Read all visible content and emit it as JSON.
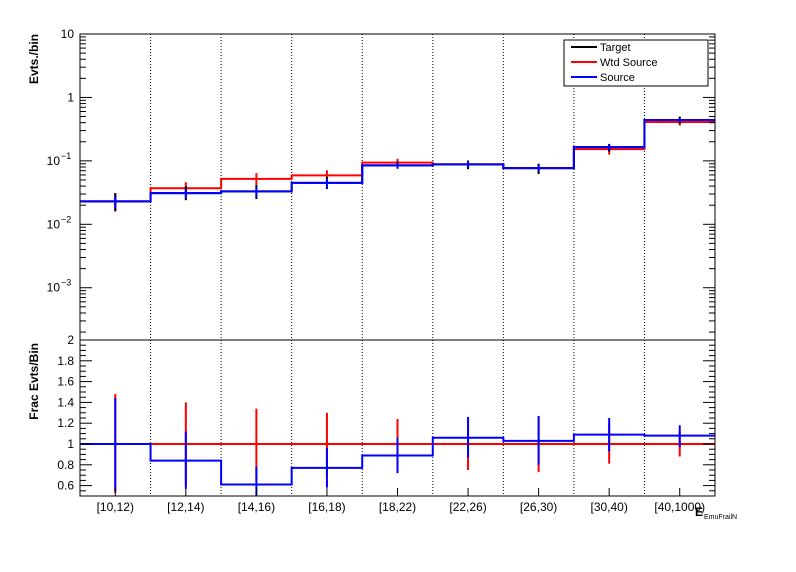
{
  "chart_data": {
    "type": "line",
    "categories": [
      "[10,12)",
      "[12,14)",
      "[14,16)",
      "[16,18)",
      "[18,22)",
      "[22,26)",
      "[26,30)",
      "[30,40)",
      "[40,1000)"
    ],
    "xlabel": "E",
    "xlabel_fragment": "EmuFrailN",
    "legend_position": "top-right",
    "legend": [
      {
        "name": "Target",
        "color": "#000000"
      },
      {
        "name": "Wtd Source",
        "color": "#ff0000"
      },
      {
        "name": "Source",
        "color": "#0000ff"
      }
    ],
    "top_panel": {
      "ylabel": "Evts./bin",
      "yscale": "log",
      "ylim": [
        0.00015,
        10
      ],
      "tick_labels": [
        {
          "value": 10,
          "base": "10",
          "exp": ""
        },
        {
          "value": 1,
          "base": "1",
          "exp": ""
        },
        {
          "value": 0.1,
          "base": "10",
          "exp": "−1"
        },
        {
          "value": 0.01,
          "base": "10",
          "exp": "−2"
        },
        {
          "value": 0.001,
          "base": "10",
          "exp": "−3"
        }
      ],
      "series": [
        {
          "name": "Target",
          "color": "#000000",
          "values": [
            0.023,
            0.031,
            0.033,
            0.045,
            0.085,
            0.088,
            0.077,
            0.165,
            0.44
          ],
          "err_low": [
            0.016,
            0.024,
            0.025,
            0.036,
            0.075,
            0.074,
            0.062,
            0.14,
            0.38
          ],
          "err_high": [
            0.031,
            0.04,
            0.042,
            0.056,
            0.098,
            0.101,
            0.09,
            0.185,
            0.5
          ]
        },
        {
          "name": "Wtd Source",
          "color": "#ff0000",
          "values": [
            0.023,
            0.037,
            0.052,
            0.059,
            0.094,
            0.088,
            0.077,
            0.153,
            0.41
          ],
          "err_low": [
            0.016,
            0.03,
            0.042,
            0.048,
            0.08,
            0.075,
            0.064,
            0.125,
            0.36
          ],
          "err_high": [
            0.031,
            0.046,
            0.064,
            0.071,
            0.108,
            0.101,
            0.09,
            0.18,
            0.46
          ]
        },
        {
          "name": "Source",
          "color": "#0000ff",
          "values": [
            0.023,
            0.031,
            0.033,
            0.045,
            0.085,
            0.088,
            0.077,
            0.165,
            0.44
          ],
          "err_low": [
            0.018,
            0.026,
            0.027,
            0.038,
            0.076,
            0.079,
            0.068,
            0.148,
            0.41
          ],
          "err_high": [
            0.028,
            0.036,
            0.039,
            0.052,
            0.094,
            0.097,
            0.086,
            0.182,
            0.47
          ]
        }
      ]
    },
    "bottom_panel": {
      "ylabel": "Frac Evts/Bin",
      "yscale": "linear",
      "ylim": [
        0.5,
        2.0
      ],
      "tick_labels": [
        "0.6",
        "0.8",
        "1",
        "1.2",
        "1.4",
        "1.6",
        "1.8",
        "2"
      ],
      "series": [
        {
          "name": "Wtd Source",
          "color": "#ff0000",
          "values": [
            1.0,
            1.0,
            1.0,
            1.0,
            1.0,
            1.0,
            1.0,
            1.0,
            1.0
          ],
          "err_low": [
            0.53,
            0.6,
            0.65,
            0.7,
            0.78,
            0.75,
            0.73,
            0.81,
            0.88
          ],
          "err_high": [
            1.48,
            1.4,
            1.34,
            1.3,
            1.24,
            1.24,
            1.26,
            1.19,
            1.12
          ]
        },
        {
          "name": "Source",
          "color": "#0000ff",
          "values": [
            1.0,
            0.84,
            0.61,
            0.77,
            0.89,
            1.06,
            1.03,
            1.09,
            1.08
          ],
          "err_low": [
            0.55,
            0.57,
            0.5,
            0.58,
            0.72,
            0.87,
            0.8,
            0.93,
            0.97
          ],
          "err_high": [
            1.44,
            1.12,
            0.78,
            0.96,
            1.06,
            1.26,
            1.27,
            1.25,
            1.18
          ]
        }
      ]
    }
  }
}
